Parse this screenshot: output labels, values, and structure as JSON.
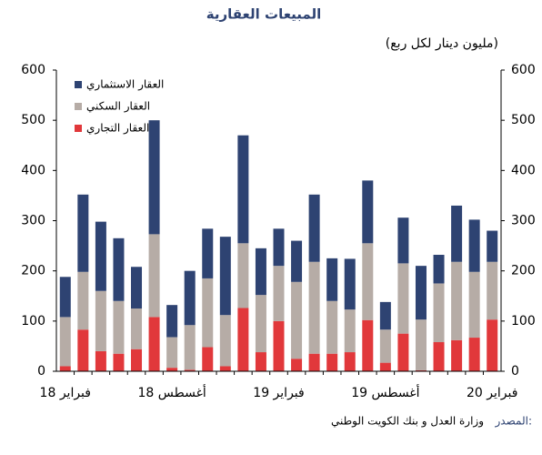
{
  "chart_data": {
    "type": "bar",
    "stacked": true,
    "title": "المبيعات العقارية",
    "subtitle": "(مليون دينار لكل ربع)",
    "source_label": "المصدر:",
    "source": "وزارة العدل و بنك الكويت الوطني",
    "categories": [
      "فبراير 18",
      null,
      null,
      null,
      null,
      null,
      "أغسطس 18",
      null,
      null,
      null,
      null,
      null,
      "فبراير 19",
      null,
      null,
      null,
      null,
      null,
      "أغسطس 19",
      null,
      null,
      null,
      null,
      null,
      "فبراير 20"
    ],
    "series": [
      {
        "name": "العقار الاستثماري",
        "color": "#2e4372",
        "values": [
          80,
          154,
          138,
          125,
          83,
          227,
          64,
          108,
          99,
          156,
          215,
          93,
          74,
          82,
          134,
          85,
          101,
          125,
          55,
          91,
          107,
          57,
          112,
          104,
          62
        ]
      },
      {
        "name": "العقار السكني",
        "color": "#b6aca6",
        "values": [
          98,
          115,
          120,
          105,
          81,
          165,
          61,
          89,
          137,
          102,
          129,
          114,
          110,
          153,
          183,
          105,
          85,
          153,
          66,
          140,
          101,
          117,
          156,
          131,
          115
        ]
      },
      {
        "name": "العقار التجاري",
        "color": "#e1383b",
        "values": [
          10,
          83,
          40,
          35,
          44,
          108,
          7,
          3,
          48,
          10,
          126,
          38,
          100,
          25,
          35,
          35,
          38,
          102,
          17,
          75,
          2,
          58,
          62,
          67,
          103
        ]
      }
    ],
    "ylim": [
      0,
      600
    ],
    "yticks": [
      0,
      100,
      200,
      300,
      400,
      500,
      600
    ]
  }
}
